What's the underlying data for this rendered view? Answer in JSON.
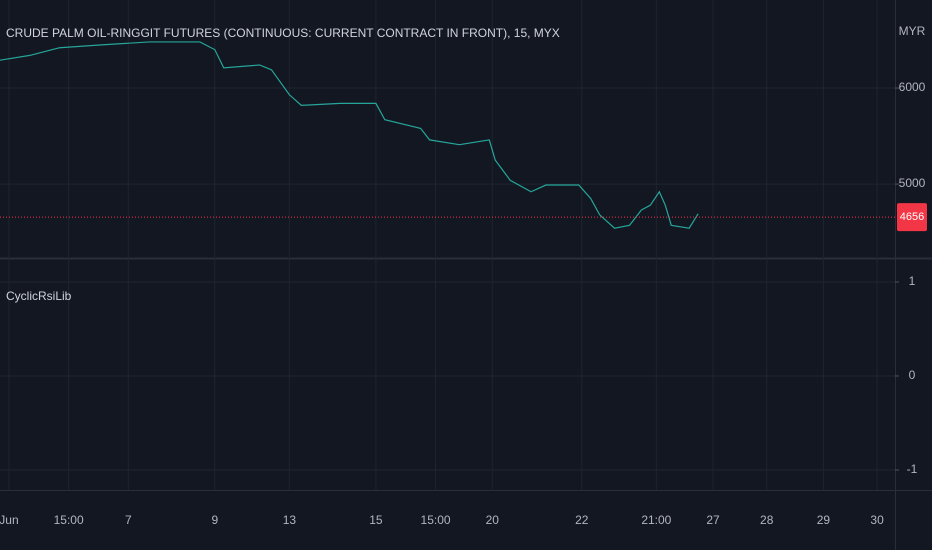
{
  "chart_data": [
    {
      "type": "line",
      "title": "CRUDE PALM OIL-RINGGIT FUTURES (CONTINUOUS: CURRENT CONTRACT IN FRONT), 15, MYX",
      "currency": "MYR",
      "x": [
        0,
        10,
        20,
        34,
        50,
        67,
        72,
        75,
        87,
        91,
        97,
        101,
        114,
        126,
        129,
        141,
        144,
        154,
        164,
        166,
        171,
        178,
        183,
        194,
        198,
        201,
        206,
        211,
        215,
        218,
        221,
        223,
        225,
        231,
        234
      ],
      "series": [
        {
          "color": "#26a69a",
          "values": [
            6290,
            6340,
            6420,
            6450,
            6480,
            6480,
            6400,
            6210,
            6240,
            6190,
            5930,
            5820,
            5840,
            5840,
            5670,
            5580,
            5460,
            5410,
            5460,
            5250,
            5040,
            4920,
            4990,
            4990,
            4850,
            4680,
            4540,
            4570,
            4730,
            4780,
            4920,
            4780,
            4570,
            4540,
            4690
          ]
        }
      ],
      "last_price": 4656,
      "last_price_color": "#f23645",
      "xlim": [
        0,
        300
      ],
      "xticks": [
        {
          "value": 3,
          "label": "Jun"
        },
        {
          "value": 23,
          "label": "15:00"
        },
        {
          "value": 43,
          "label": "7"
        },
        {
          "value": 72,
          "label": "9"
        },
        {
          "value": 97,
          "label": "13"
        },
        {
          "value": 126,
          "label": "15"
        },
        {
          "value": 146,
          "label": "15:00"
        },
        {
          "value": 165,
          "label": "20"
        },
        {
          "value": 195,
          "label": "22"
        },
        {
          "value": 220,
          "label": "21:00"
        },
        {
          "value": 239,
          "label": "27"
        },
        {
          "value": 257,
          "label": "28"
        },
        {
          "value": 276,
          "label": "29"
        },
        {
          "value": 294,
          "label": "30"
        }
      ],
      "ylim": [
        4230,
        6917
      ],
      "yticks": [
        5000,
        6000
      ],
      "grid": true
    },
    {
      "type": "indicator",
      "title": "CyclicRsiLib",
      "ylim": [
        -1.213,
        1.255
      ],
      "yticks": [
        -1,
        0,
        1
      ],
      "grid": true
    }
  ]
}
